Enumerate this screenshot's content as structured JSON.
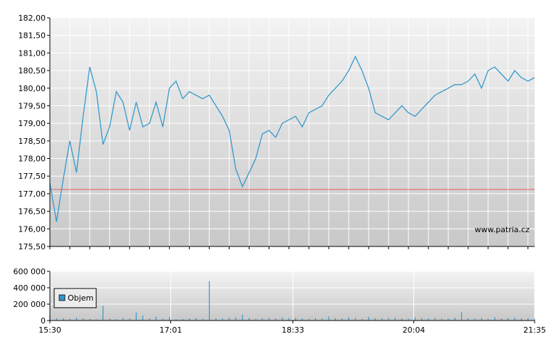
{
  "watermark": "www.patria.cz",
  "colors": {
    "price_line": "#3399cc",
    "reference_line": "#e06060",
    "volume_bar": "#3399cc",
    "grid": "#ffffff",
    "bg_top": "#f3f3f3",
    "bg_bottom": "#c8c8c8"
  },
  "chart_data": [
    {
      "type": "line",
      "title": "",
      "xlabel": "",
      "ylabel": "",
      "ylim": [
        175.5,
        182.0
      ],
      "y_ticks": [
        "182,00",
        "181,50",
        "181,00",
        "180,50",
        "180,00",
        "179,50",
        "179,00",
        "178,50",
        "178,00",
        "177,50",
        "177,00",
        "176,50",
        "176,00",
        "175,50"
      ],
      "y_tick_values": [
        182.0,
        181.5,
        181.0,
        180.5,
        180.0,
        179.5,
        179.0,
        178.5,
        178.0,
        177.5,
        177.0,
        176.5,
        176.0,
        175.5
      ],
      "grid": true,
      "reference_line": 177.12,
      "series": [
        {
          "x": [
            "15:30",
            "15:35",
            "15:40",
            "15:45",
            "15:50",
            "15:55",
            "16:00",
            "16:05",
            "16:10",
            "16:15",
            "16:20",
            "16:25",
            "16:30",
            "16:35",
            "16:40",
            "16:45",
            "16:50",
            "16:55",
            "17:00",
            "17:05",
            "17:10",
            "17:15",
            "17:20",
            "17:25",
            "17:30",
            "17:35",
            "17:40",
            "17:45",
            "17:50",
            "17:55",
            "18:00",
            "18:05",
            "18:10",
            "18:15",
            "18:20",
            "18:25",
            "18:30",
            "18:35",
            "18:40",
            "18:45",
            "18:50",
            "18:55",
            "19:00",
            "19:05",
            "19:10",
            "19:15",
            "19:20",
            "19:25",
            "19:30",
            "19:35",
            "19:40",
            "19:45",
            "19:50",
            "19:55",
            "20:00",
            "20:05",
            "20:10",
            "20:15",
            "20:20",
            "20:25",
            "20:30",
            "20:35",
            "20:40",
            "20:45",
            "20:50",
            "20:55",
            "21:00",
            "21:05",
            "21:10",
            "21:15",
            "21:20",
            "21:25",
            "21:30",
            "21:35"
          ],
          "values": [
            177.3,
            176.2,
            177.4,
            178.5,
            177.6,
            179.2,
            180.6,
            179.9,
            178.4,
            178.9,
            179.9,
            179.6,
            178.8,
            179.6,
            178.9,
            179.0,
            179.6,
            178.9,
            180.0,
            180.2,
            179.7,
            179.9,
            179.8,
            179.7,
            179.8,
            179.5,
            179.2,
            178.8,
            177.7,
            177.2,
            177.6,
            178.0,
            178.7,
            178.8,
            178.6,
            179.0,
            179.1,
            179.2,
            178.9,
            179.3,
            179.4,
            179.5,
            179.8,
            180.0,
            180.2,
            180.5,
            180.9,
            180.5,
            180.0,
            179.3,
            179.2,
            179.1,
            179.3,
            179.5,
            179.3,
            179.2,
            179.4,
            179.6,
            179.8,
            179.9,
            180.0,
            180.1,
            180.1,
            180.2,
            180.4,
            180.0,
            180.5,
            180.6,
            180.4,
            180.2,
            180.5,
            180.3,
            180.2,
            180.3
          ]
        }
      ]
    },
    {
      "type": "bar",
      "title": "",
      "ylim": [
        0,
        600000
      ],
      "y_ticks": [
        "600 000",
        "400 000",
        "200 000",
        "0"
      ],
      "y_tick_values": [
        600000,
        400000,
        200000,
        0
      ],
      "x_ticks": [
        "15:30",
        "17:01",
        "18:33",
        "20:04",
        "21:35"
      ],
      "grid": true,
      "legend": {
        "position": "left",
        "entries": [
          "Objem"
        ]
      },
      "series": [
        {
          "name": "Objem",
          "x": [
            "15:30",
            "15:35",
            "15:40",
            "15:45",
            "15:50",
            "15:55",
            "16:00",
            "16:05",
            "16:10",
            "16:15",
            "16:20",
            "16:25",
            "16:30",
            "16:35",
            "16:40",
            "16:45",
            "16:50",
            "16:55",
            "17:00",
            "17:05",
            "17:10",
            "17:15",
            "17:20",
            "17:25",
            "17:30",
            "17:35",
            "17:40",
            "17:45",
            "17:50",
            "17:55",
            "18:00",
            "18:05",
            "18:10",
            "18:15",
            "18:20",
            "18:25",
            "18:30",
            "18:35",
            "18:40",
            "18:45",
            "18:50",
            "18:55",
            "19:00",
            "19:05",
            "19:10",
            "19:15",
            "19:20",
            "19:25",
            "19:30",
            "19:35",
            "19:40",
            "19:45",
            "19:50",
            "19:55",
            "20:00",
            "20:05",
            "20:10",
            "20:15",
            "20:20",
            "20:25",
            "20:30",
            "20:35",
            "20:40",
            "20:45",
            "20:50",
            "20:55",
            "21:00",
            "21:05",
            "21:10",
            "21:15",
            "21:20",
            "21:25",
            "21:30",
            "21:35"
          ],
          "values": [
            60000,
            30000,
            25000,
            20000,
            35000,
            25000,
            20000,
            15000,
            180000,
            20000,
            15000,
            30000,
            25000,
            100000,
            60000,
            25000,
            45000,
            20000,
            40000,
            15000,
            20000,
            25000,
            30000,
            20000,
            480000,
            30000,
            25000,
            35000,
            40000,
            70000,
            30000,
            20000,
            25000,
            30000,
            25000,
            40000,
            30000,
            35000,
            25000,
            20000,
            30000,
            25000,
            50000,
            30000,
            25000,
            40000,
            30000,
            20000,
            45000,
            30000,
            25000,
            30000,
            35000,
            25000,
            20000,
            40000,
            30000,
            25000,
            30000,
            20000,
            25000,
            35000,
            100000,
            30000,
            25000,
            30000,
            20000,
            40000,
            25000,
            30000,
            35000,
            25000,
            30000,
            20000
          ]
        }
      ]
    }
  ]
}
